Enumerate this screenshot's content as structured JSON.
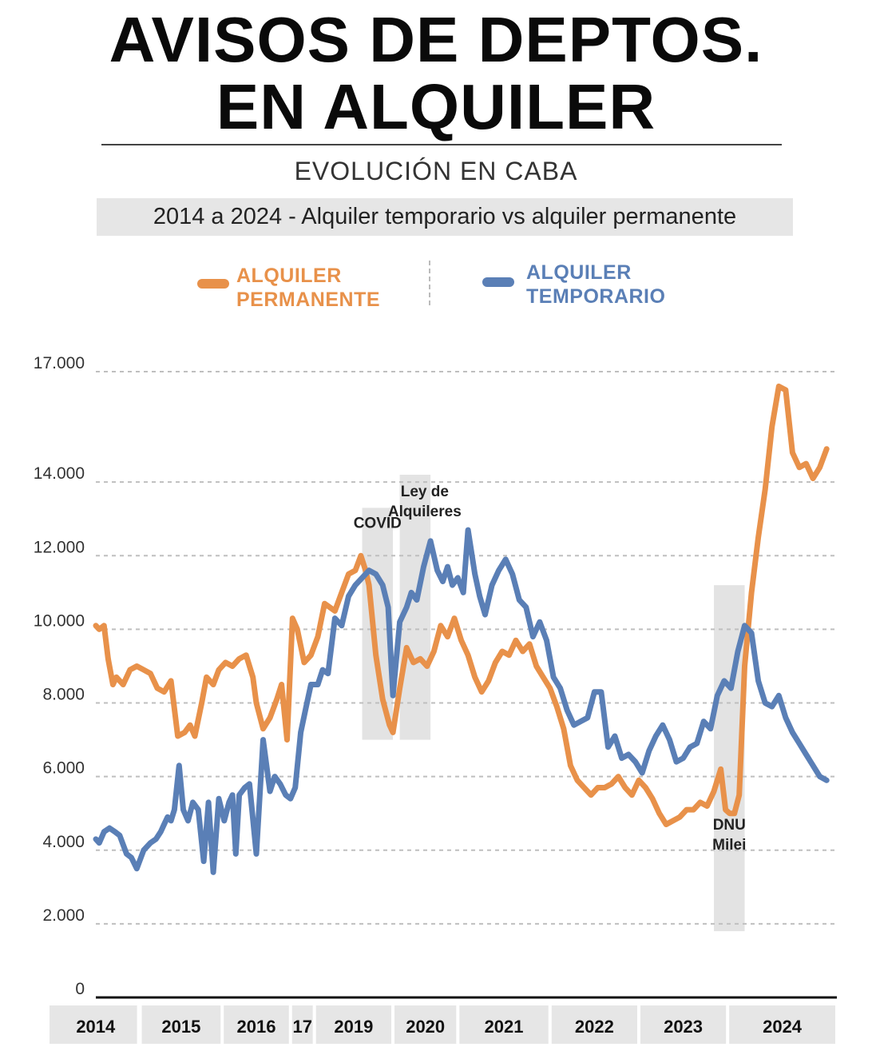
{
  "header": {
    "title_line1": "AVISOS DE DEPTOS.",
    "title_line2": "EN ALQUILER",
    "subtitle": "EVOLUCIÓN EN CABA",
    "subtitle2": "2014 a 2024 - Alquiler temporario vs alquiler permanente"
  },
  "legend": {
    "permanent_line1": "ALQUILER",
    "permanent_line2": "PERMANENTE",
    "temporary_line1": "ALQUILER",
    "temporary_line2": "TEMPORARIO"
  },
  "colors": {
    "permanent": "#e8914a",
    "temporary": "#5a7fb6",
    "band": "#e3e3e3",
    "grid": "#bfbfbf"
  },
  "chart_data": {
    "type": "line",
    "title": "AVISOS DE DEPTOS. EN ALQUILER",
    "ylim": [
      0,
      17000
    ],
    "yticks": [
      0,
      2000,
      4000,
      6000,
      8000,
      10000,
      12000,
      14000,
      17000
    ],
    "ytick_labels": [
      "0",
      "2.000",
      "4.000",
      "6.000",
      "8.000",
      "10.000",
      "12.000",
      "14.000",
      "17.000"
    ],
    "xlim": [
      2014.0,
      2024.85
    ],
    "year_labels": [
      {
        "label": "2014",
        "from": 2014.0,
        "to": 2014.65
      },
      {
        "label": "2015",
        "from": 2014.65,
        "to": 2015.85
      },
      {
        "label": "2016",
        "from": 2015.85,
        "to": 2016.85
      },
      {
        "label": "17",
        "from": 2016.85,
        "to": 2017.2
      },
      {
        "label": "2019",
        "from": 2017.2,
        "to": 2018.35
      },
      {
        "label": "2020",
        "from": 2018.35,
        "to": 2019.3
      },
      {
        "label": "2021",
        "from": 2019.3,
        "to": 2020.65
      },
      {
        "label": "2022",
        "from": 2020.65,
        "to": 2021.95
      },
      {
        "label": "2023",
        "from": 2021.95,
        "to": 2023.25
      },
      {
        "label": "2024",
        "from": 2023.25,
        "to": 2024.85
      }
    ],
    "annotations": [
      {
        "label": "COVID",
        "from": 2017.9,
        "to": 2018.35,
        "ymin": 7000,
        "ymax": 13300
      },
      {
        "label": "Ley de|Alquileres",
        "from": 2018.45,
        "to": 2018.9,
        "ymin": 7000,
        "ymax": 14200
      },
      {
        "label": "DNU|Milei",
        "from": 2023.05,
        "to": 2023.5,
        "ymin": 1800,
        "ymax": 11200
      }
    ],
    "series": [
      {
        "name": "ALQUILER PERMANENTE",
        "x": [
          2014.0,
          2014.05,
          2014.12,
          2014.18,
          2014.25,
          2014.3,
          2014.4,
          2014.5,
          2014.6,
          2014.7,
          2014.8,
          2014.9,
          2015.0,
          2015.1,
          2015.2,
          2015.3,
          2015.38,
          2015.45,
          2015.55,
          2015.62,
          2015.72,
          2015.8,
          2015.9,
          2016.0,
          2016.1,
          2016.2,
          2016.3,
          2016.35,
          2016.45,
          2016.55,
          2016.65,
          2016.72,
          2016.8,
          2016.88,
          2016.95,
          2017.05,
          2017.15,
          2017.25,
          2017.35,
          2017.5,
          2017.6,
          2017.7,
          2017.8,
          2017.88,
          2017.95,
          2018.0,
          2018.1,
          2018.2,
          2018.3,
          2018.35,
          2018.45,
          2018.55,
          2018.65,
          2018.75,
          2018.85,
          2018.95,
          2019.05,
          2019.15,
          2019.25,
          2019.35,
          2019.45,
          2019.55,
          2019.65,
          2019.75,
          2019.85,
          2019.95,
          2020.05,
          2020.15,
          2020.25,
          2020.35,
          2020.45,
          2020.55,
          2020.65,
          2020.75,
          2020.85,
          2020.95,
          2021.05,
          2021.15,
          2021.25,
          2021.35,
          2021.45,
          2021.55,
          2021.65,
          2021.75,
          2021.85,
          2021.95,
          2022.05,
          2022.15,
          2022.25,
          2022.35,
          2022.45,
          2022.55,
          2022.65,
          2022.75,
          2022.85,
          2022.95,
          2023.05,
          2023.15,
          2023.22,
          2023.28,
          2023.35,
          2023.42,
          2023.5,
          2023.6,
          2023.7,
          2023.8,
          2023.9,
          2024.0,
          2024.1,
          2024.2,
          2024.3,
          2024.4,
          2024.5,
          2024.6,
          2024.7
        ],
        "y": [
          10100,
          10000,
          10100,
          9200,
          8500,
          8700,
          8500,
          8900,
          9000,
          8900,
          8800,
          8400,
          8300,
          8600,
          7100,
          7200,
          7400,
          7100,
          8000,
          8700,
          8500,
          8900,
          9100,
          9000,
          9200,
          9300,
          8700,
          8000,
          7300,
          7600,
          8100,
          8500,
          7000,
          10300,
          10000,
          9100,
          9300,
          9800,
          10700,
          10500,
          11000,
          11500,
          11600,
          12000,
          11600,
          11200,
          9300,
          8100,
          7400,
          7200,
          8400,
          9500,
          9100,
          9200,
          9000,
          9400,
          10100,
          9800,
          10300,
          9700,
          9300,
          8700,
          8300,
          8600,
          9100,
          9400,
          9300,
          9700,
          9400,
          9600,
          9000,
          8700,
          8400,
          7900,
          7300,
          6300,
          5900,
          5700,
          5500,
          5700,
          5700,
          5800,
          6000,
          5700,
          5500,
          5900,
          5700,
          5400,
          5000,
          4700,
          4800,
          4900,
          5100,
          5100,
          5300,
          5200,
          5600,
          6200,
          5100,
          5000,
          5000,
          5500,
          9000,
          11000,
          12500,
          13800,
          15500,
          16600,
          16500,
          14800,
          14400,
          14500,
          14100,
          14400,
          14900
        ]
      },
      {
        "name": "ALQUILER TEMPORARIO",
        "x": [
          2014.0,
          2014.05,
          2014.12,
          2014.2,
          2014.28,
          2014.35,
          2014.45,
          2014.52,
          2014.6,
          2014.7,
          2014.8,
          2014.88,
          2014.95,
          2015.0,
          2015.05,
          2015.1,
          2015.15,
          2015.22,
          2015.28,
          2015.35,
          2015.42,
          2015.5,
          2015.58,
          2015.65,
          2015.72,
          2015.8,
          2015.88,
          2015.95,
          2016.0,
          2016.05,
          2016.1,
          2016.18,
          2016.25,
          2016.35,
          2016.45,
          2016.55,
          2016.62,
          2016.7,
          2016.78,
          2016.85,
          2016.92,
          2017.0,
          2017.08,
          2017.15,
          2017.25,
          2017.32,
          2017.4,
          2017.5,
          2017.6,
          2017.7,
          2017.8,
          2017.9,
          2018.0,
          2018.1,
          2018.2,
          2018.28,
          2018.35,
          2018.45,
          2018.55,
          2018.62,
          2018.7,
          2018.8,
          2018.9,
          2019.0,
          2019.08,
          2019.15,
          2019.22,
          2019.3,
          2019.38,
          2019.45,
          2019.55,
          2019.62,
          2019.7,
          2019.8,
          2019.9,
          2020.0,
          2020.1,
          2020.2,
          2020.3,
          2020.4,
          2020.5,
          2020.6,
          2020.7,
          2020.8,
          2020.9,
          2021.0,
          2021.1,
          2021.2,
          2021.3,
          2021.4,
          2021.5,
          2021.6,
          2021.7,
          2021.8,
          2021.9,
          2022.0,
          2022.1,
          2022.2,
          2022.3,
          2022.4,
          2022.5,
          2022.6,
          2022.7,
          2022.8,
          2022.9,
          2023.0,
          2023.1,
          2023.2,
          2023.3,
          2023.4,
          2023.5,
          2023.6,
          2023.7,
          2023.8,
          2023.9,
          2024.0,
          2024.1,
          2024.2,
          2024.3,
          2024.4,
          2024.5,
          2024.6,
          2024.7
        ],
        "y": [
          4300,
          4200,
          4500,
          4600,
          4500,
          4400,
          3900,
          3800,
          3500,
          4000,
          4200,
          4300,
          4500,
          4700,
          4900,
          4800,
          5100,
          6300,
          5100,
          4800,
          5300,
          5100,
          3700,
          5300,
          3400,
          5400,
          4800,
          5300,
          5500,
          3900,
          5500,
          5700,
          5800,
          3900,
          7000,
          5600,
          6000,
          5800,
          5500,
          5400,
          5700,
          7200,
          7900,
          8500,
          8500,
          8900,
          8800,
          10300,
          10100,
          10900,
          11200,
          11400,
          11600,
          11500,
          11200,
          10600,
          8200,
          10200,
          10600,
          11000,
          10800,
          11700,
          12400,
          11600,
          11300,
          11700,
          11200,
          11400,
          11000,
          12700,
          11500,
          10900,
          10400,
          11200,
          11600,
          11900,
          11500,
          10800,
          10600,
          9800,
          10200,
          9700,
          8700,
          8400,
          7800,
          7400,
          7500,
          7600,
          8300,
          8300,
          6800,
          7100,
          6500,
          6600,
          6400,
          6100,
          6700,
          7100,
          7400,
          7000,
          6400,
          6500,
          6800,
          6900,
          7500,
          7300,
          8200,
          8600,
          8400,
          9400,
          10100,
          9900,
          8600,
          8000,
          7900,
          8200,
          7600,
          7200,
          6900,
          6600,
          6300,
          6000,
          5900
        ]
      }
    ]
  }
}
